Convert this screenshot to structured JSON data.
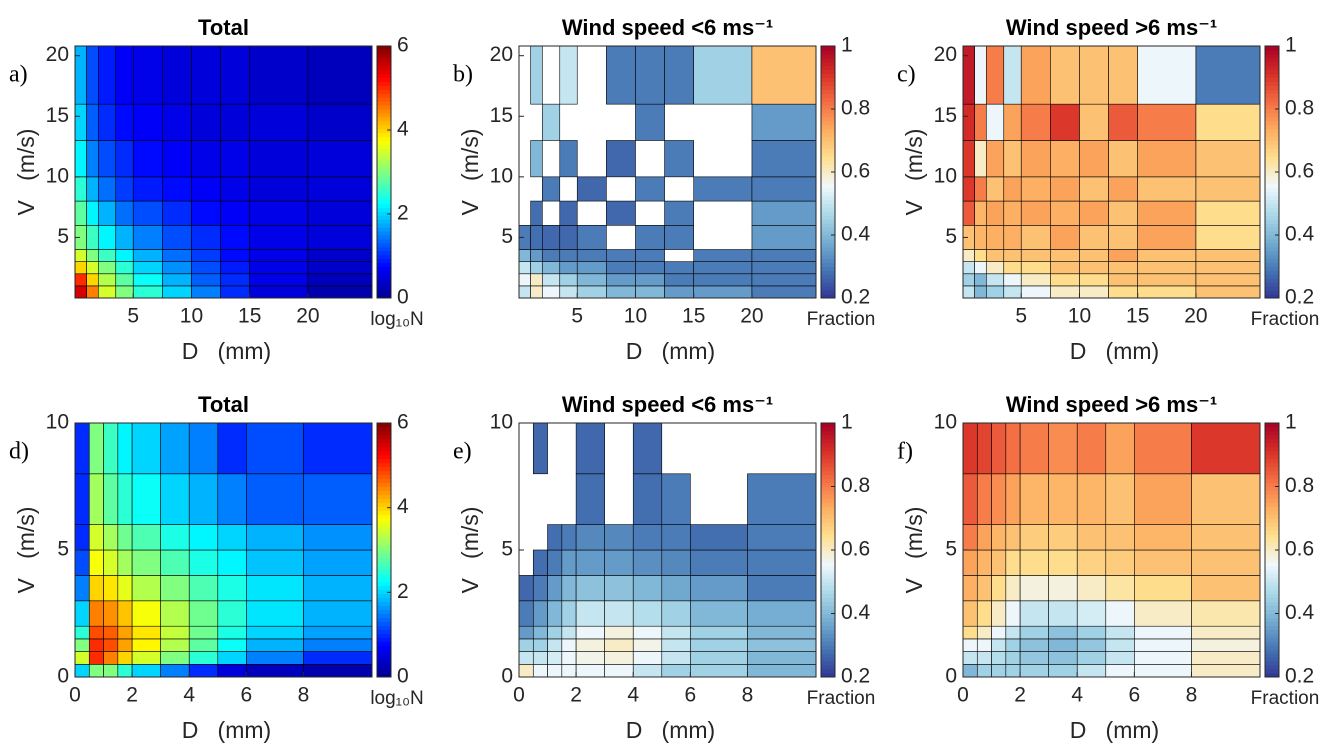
{
  "chart_data": [
    {
      "type": "heatmap",
      "label": "a)",
      "title": "Total",
      "xlabel": "D   (mm)",
      "ylabel": "V   (m/s)",
      "xlim": [
        0,
        25.5
      ],
      "ylim": [
        0,
        20.8
      ],
      "xticks": [
        5,
        10,
        15,
        20
      ],
      "yticks": [
        5,
        10,
        15,
        20
      ],
      "x_edges": [
        0,
        1,
        2,
        3.5,
        5,
        7.5,
        10,
        12.5,
        15,
        20,
        25.5
      ],
      "y_edges": [
        0,
        1,
        2,
        3,
        4,
        6,
        8,
        10,
        13,
        16,
        20.8
      ],
      "colormap": "jet",
      "clim": [
        0,
        6
      ],
      "cticks": [
        0,
        2,
        4,
        6
      ],
      "colorbar_label": "log₁₀N",
      "z": [
        [
          5.5,
          4.5,
          3.5,
          3,
          2.5,
          2,
          1.5,
          1,
          0.5,
          0.2
        ],
        [
          5,
          4,
          3.3,
          2.8,
          2.3,
          1.8,
          1.3,
          1,
          0.6,
          0.3
        ],
        [
          4,
          3.5,
          3,
          2.5,
          2,
          1.6,
          1.2,
          0.9,
          0.6,
          0.4
        ],
        [
          3.5,
          3,
          2.6,
          2.2,
          1.8,
          1.4,
          1.1,
          0.8,
          0.6,
          0.4
        ],
        [
          3,
          2.6,
          2.2,
          1.8,
          1.5,
          1.2,
          1,
          0.8,
          0.6,
          0.5
        ],
        [
          2.8,
          2.2,
          1.8,
          1.4,
          1.2,
          1,
          0.8,
          0.7,
          0.6,
          0.5
        ],
        [
          2.5,
          1.8,
          1.4,
          1.1,
          0.9,
          0.8,
          0.7,
          0.6,
          0.5,
          0.5
        ],
        [
          2.2,
          1.5,
          1.2,
          1,
          0.8,
          0.7,
          0.6,
          0.6,
          0.5,
          0.5
        ],
        [
          2,
          1.3,
          1,
          0.8,
          0.7,
          0.6,
          0.5,
          0.5,
          0.5,
          0.4
        ],
        [
          1.8,
          1.2,
          0.9,
          0.7,
          0.6,
          0.5,
          0.5,
          0.5,
          0.4,
          0.3
        ]
      ]
    },
    {
      "type": "heatmap",
      "label": "b)",
      "title": "Wind speed <6 ms⁻¹",
      "xlabel": "D   (mm)",
      "ylabel": "V   (m/s)",
      "xlim": [
        0,
        25.5
      ],
      "ylim": [
        0,
        20.8
      ],
      "xticks": [
        5,
        10,
        15,
        20
      ],
      "yticks": [
        5,
        10,
        15,
        20
      ],
      "x_edges": [
        0,
        1,
        2,
        3.5,
        5,
        7.5,
        10,
        12.5,
        15,
        20,
        25.5
      ],
      "y_edges": [
        0,
        1,
        2,
        3,
        4,
        6,
        8,
        10,
        13,
        16,
        20.8
      ],
      "colormap": "RdYlBu_r",
      "clim": [
        0.2,
        1
      ],
      "cticks": [
        0.2,
        0.4,
        0.6,
        0.8,
        1
      ],
      "colorbar_label": "Fraction",
      "z": [
        [
          0.5,
          0.6,
          0.55,
          0.5,
          0.45,
          0.4,
          0.4,
          0.35,
          0.35,
          0.3
        ],
        [
          0.55,
          0.6,
          0.5,
          0.45,
          0.4,
          0.35,
          0.35,
          0.3,
          0.3,
          0.3
        ],
        [
          0.5,
          0.45,
          0.4,
          0.35,
          0.35,
          0.3,
          0.3,
          0.3,
          0.3,
          0.3
        ],
        [
          0.4,
          0.35,
          0.3,
          0.3,
          0.3,
          0.3,
          0.3,
          null,
          0.3,
          0.3
        ],
        [
          0.3,
          0.28,
          0.27,
          0.27,
          0.3,
          null,
          0.3,
          0.3,
          null,
          0.35
        ],
        [
          null,
          0.28,
          null,
          0.27,
          null,
          0.27,
          null,
          0.3,
          null,
          0.35
        ],
        [
          null,
          null,
          0.3,
          null,
          0.27,
          null,
          0.3,
          null,
          0.3,
          0.3
        ],
        [
          null,
          0.4,
          null,
          0.3,
          null,
          0.27,
          null,
          0.3,
          null,
          0.3
        ],
        [
          null,
          null,
          0.45,
          null,
          null,
          null,
          0.3,
          null,
          null,
          0.35
        ],
        [
          null,
          0.45,
          null,
          0.5,
          null,
          0.3,
          0.3,
          0.3,
          0.45,
          0.7
        ]
      ]
    },
    {
      "type": "heatmap",
      "label": "c)",
      "title": "Wind speed >6 ms⁻¹",
      "xlabel": "D   (mm)",
      "ylabel": "V   (m/s)",
      "xlim": [
        0,
        25.5
      ],
      "ylim": [
        0,
        20.8
      ],
      "xticks": [
        5,
        10,
        15,
        20
      ],
      "yticks": [
        5,
        10,
        15,
        20
      ],
      "x_edges": [
        0,
        1,
        2,
        3.5,
        5,
        7.5,
        10,
        12.5,
        15,
        20,
        25.5
      ],
      "y_edges": [
        0,
        1,
        2,
        3,
        4,
        6,
        8,
        10,
        13,
        16,
        20.8
      ],
      "colormap": "RdYlBu_r",
      "clim": [
        0.2,
        1
      ],
      "cticks": [
        0.2,
        0.4,
        0.6,
        0.8,
        1
      ],
      "colorbar_label": "Fraction",
      "z": [
        [
          0.5,
          0.4,
          0.45,
          0.5,
          0.55,
          0.6,
          0.6,
          0.65,
          0.65,
          0.7
        ],
        [
          0.45,
          0.4,
          0.5,
          0.55,
          0.6,
          0.65,
          0.65,
          0.7,
          0.7,
          0.7
        ],
        [
          0.5,
          0.55,
          0.6,
          0.65,
          0.65,
          0.7,
          0.7,
          0.7,
          0.7,
          0.7
        ],
        [
          0.6,
          0.65,
          0.7,
          0.7,
          0.7,
          0.7,
          0.7,
          0.75,
          0.7,
          0.7
        ],
        [
          0.7,
          0.72,
          0.73,
          0.73,
          0.7,
          0.75,
          0.7,
          0.7,
          0.75,
          0.65
        ],
        [
          0.85,
          0.72,
          0.75,
          0.73,
          0.75,
          0.73,
          0.75,
          0.7,
          0.75,
          0.65
        ],
        [
          0.9,
          0.8,
          0.7,
          0.75,
          0.73,
          0.75,
          0.7,
          0.75,
          0.7,
          0.7
        ],
        [
          0.9,
          0.6,
          0.75,
          0.7,
          0.75,
          0.73,
          0.75,
          0.7,
          0.75,
          0.7
        ],
        [
          0.92,
          0.8,
          0.55,
          0.75,
          0.8,
          0.9,
          0.7,
          0.85,
          0.8,
          0.65
        ],
        [
          0.95,
          0.55,
          0.8,
          0.5,
          0.75,
          0.7,
          0.7,
          0.7,
          0.55,
          0.3
        ]
      ]
    },
    {
      "type": "heatmap",
      "label": "d)",
      "title": "Total",
      "xlabel": "D   (mm)",
      "ylabel": "V   (m/s)",
      "xlim": [
        0,
        10.4
      ],
      "ylim": [
        0,
        10
      ],
      "xticks": [
        0,
        2,
        4,
        6,
        8
      ],
      "yticks": [
        0,
        5,
        10
      ],
      "x_edges": [
        0,
        0.5,
        1,
        1.5,
        2,
        3,
        4,
        5,
        6,
        8,
        10.4
      ],
      "y_edges": [
        0,
        0.5,
        1,
        1.5,
        2,
        3,
        4,
        5,
        6,
        8,
        10
      ],
      "colormap": "jet",
      "clim": [
        0,
        6
      ],
      "cticks": [
        0,
        2,
        4,
        6
      ],
      "colorbar_label": "log₁₀N",
      "z": [
        [
          2,
          3,
          3,
          2.5,
          2,
          1.5,
          1,
          0.5,
          0.3,
          0.2
        ],
        [
          3.5,
          5,
          4.5,
          4,
          3.5,
          3,
          2.5,
          2,
          1.5,
          1
        ],
        [
          3,
          5,
          4.8,
          4.3,
          3.8,
          3.3,
          2.8,
          2.3,
          1.8,
          1.5
        ],
        [
          2.5,
          4.8,
          4.7,
          4.3,
          3.9,
          3.4,
          2.9,
          2.4,
          2,
          1.7
        ],
        [
          2,
          4.5,
          4.4,
          4.1,
          3.7,
          3.3,
          2.9,
          2.5,
          2.1,
          1.8
        ],
        [
          1.5,
          4,
          3.9,
          3.6,
          3.3,
          3,
          2.7,
          2.4,
          2.1,
          1.8
        ],
        [
          1.2,
          3.7,
          3.5,
          3.2,
          3,
          2.7,
          2.4,
          2.2,
          1.9,
          1.7
        ],
        [
          1,
          3.5,
          3.2,
          2.9,
          2.7,
          2.4,
          2.2,
          2,
          1.8,
          1.6
        ],
        [
          1,
          3.2,
          2.8,
          2.5,
          2.3,
          2,
          1.8,
          1.5,
          1.3,
          1.3
        ],
        [
          1,
          3,
          2.6,
          2.2,
          2,
          1.7,
          1.5,
          1,
          1.2,
          1
        ]
      ]
    },
    {
      "type": "heatmap",
      "label": "e)",
      "title": "Wind speed <6 ms⁻¹",
      "xlabel": "D   (mm)",
      "ylabel": "V   (m/s)",
      "xlim": [
        0,
        10.4
      ],
      "ylim": [
        0,
        10
      ],
      "xticks": [
        0,
        2,
        4,
        6,
        8
      ],
      "yticks": [
        0,
        5,
        10
      ],
      "x_edges": [
        0,
        0.5,
        1,
        1.5,
        2,
        3,
        4,
        5,
        6,
        8,
        10.4
      ],
      "y_edges": [
        0,
        0.5,
        1,
        1.5,
        2,
        3,
        4,
        5,
        6,
        8,
        10
      ],
      "colormap": "RdYlBu_r",
      "clim": [
        0.2,
        1
      ],
      "cticks": [
        0.2,
        0.4,
        0.6,
        0.8,
        1
      ],
      "colorbar_label": "Fraction",
      "z": [
        [
          0.6,
          0.55,
          0.55,
          0.55,
          0.55,
          0.55,
          0.5,
          0.45,
          0.45,
          0.4
        ],
        [
          0.5,
          0.5,
          0.52,
          0.55,
          0.57,
          0.58,
          0.55,
          0.5,
          0.45,
          0.4
        ],
        [
          0.45,
          0.45,
          0.5,
          0.55,
          0.58,
          0.6,
          0.57,
          0.5,
          0.45,
          0.42
        ],
        [
          0.35,
          0.4,
          0.45,
          0.5,
          0.55,
          0.58,
          0.55,
          0.5,
          0.45,
          0.4
        ],
        [
          0.3,
          0.35,
          0.4,
          0.45,
          0.5,
          0.5,
          0.48,
          0.45,
          0.4,
          0.38
        ],
        [
          0.27,
          0.3,
          0.35,
          0.4,
          0.42,
          0.42,
          0.4,
          0.37,
          0.35,
          0.3
        ],
        [
          null,
          0.28,
          0.3,
          0.35,
          0.35,
          0.35,
          0.33,
          0.32,
          0.3,
          0.3
        ],
        [
          null,
          null,
          0.28,
          0.3,
          0.32,
          0.32,
          0.3,
          0.3,
          0.28,
          0.3
        ],
        [
          null,
          null,
          null,
          null,
          0.28,
          null,
          0.28,
          0.3,
          null,
          0.3
        ],
        [
          null,
          0.27,
          null,
          null,
          0.27,
          null,
          0.27,
          null,
          null,
          null
        ]
      ]
    },
    {
      "type": "heatmap",
      "label": "f)",
      "title": "Wind speed >6 ms⁻¹",
      "xlabel": "D   (mm)",
      "ylabel": "V   (m/s)",
      "xlim": [
        0,
        10.4
      ],
      "ylim": [
        0,
        10
      ],
      "xticks": [
        0,
        2,
        4,
        6,
        8
      ],
      "yticks": [
        0,
        5,
        10
      ],
      "x_edges": [
        0,
        0.5,
        1,
        1.5,
        2,
        3,
        4,
        5,
        6,
        8,
        10.4
      ],
      "y_edges": [
        0,
        0.5,
        1,
        1.5,
        2,
        3,
        4,
        5,
        6,
        8,
        10
      ],
      "colormap": "RdYlBu_r",
      "clim": [
        0.2,
        1
      ],
      "cticks": [
        0.2,
        0.4,
        0.6,
        0.8,
        1
      ],
      "colorbar_label": "Fraction",
      "z": [
        [
          0.4,
          0.45,
          0.45,
          0.45,
          0.45,
          0.45,
          0.5,
          0.55,
          0.55,
          0.6
        ],
        [
          0.5,
          0.5,
          0.48,
          0.45,
          0.43,
          0.42,
          0.45,
          0.5,
          0.55,
          0.6
        ],
        [
          0.55,
          0.55,
          0.5,
          0.45,
          0.42,
          0.4,
          0.43,
          0.5,
          0.55,
          0.58
        ],
        [
          0.65,
          0.6,
          0.55,
          0.5,
          0.45,
          0.42,
          0.45,
          0.5,
          0.55,
          0.6
        ],
        [
          0.7,
          0.65,
          0.6,
          0.55,
          0.5,
          0.5,
          0.52,
          0.55,
          0.6,
          0.62
        ],
        [
          0.73,
          0.7,
          0.65,
          0.6,
          0.58,
          0.58,
          0.6,
          0.63,
          0.65,
          0.7
        ],
        [
          0.75,
          0.72,
          0.7,
          0.65,
          0.65,
          0.65,
          0.67,
          0.68,
          0.7,
          0.7
        ],
        [
          0.8,
          0.75,
          0.72,
          0.7,
          0.68,
          0.68,
          0.7,
          0.7,
          0.72,
          0.7
        ],
        [
          0.85,
          0.8,
          0.78,
          0.75,
          0.72,
          0.72,
          0.72,
          0.7,
          0.75,
          0.7
        ],
        [
          0.9,
          0.88,
          0.85,
          0.82,
          0.8,
          0.78,
          0.8,
          0.75,
          0.8,
          0.9
        ]
      ]
    }
  ]
}
